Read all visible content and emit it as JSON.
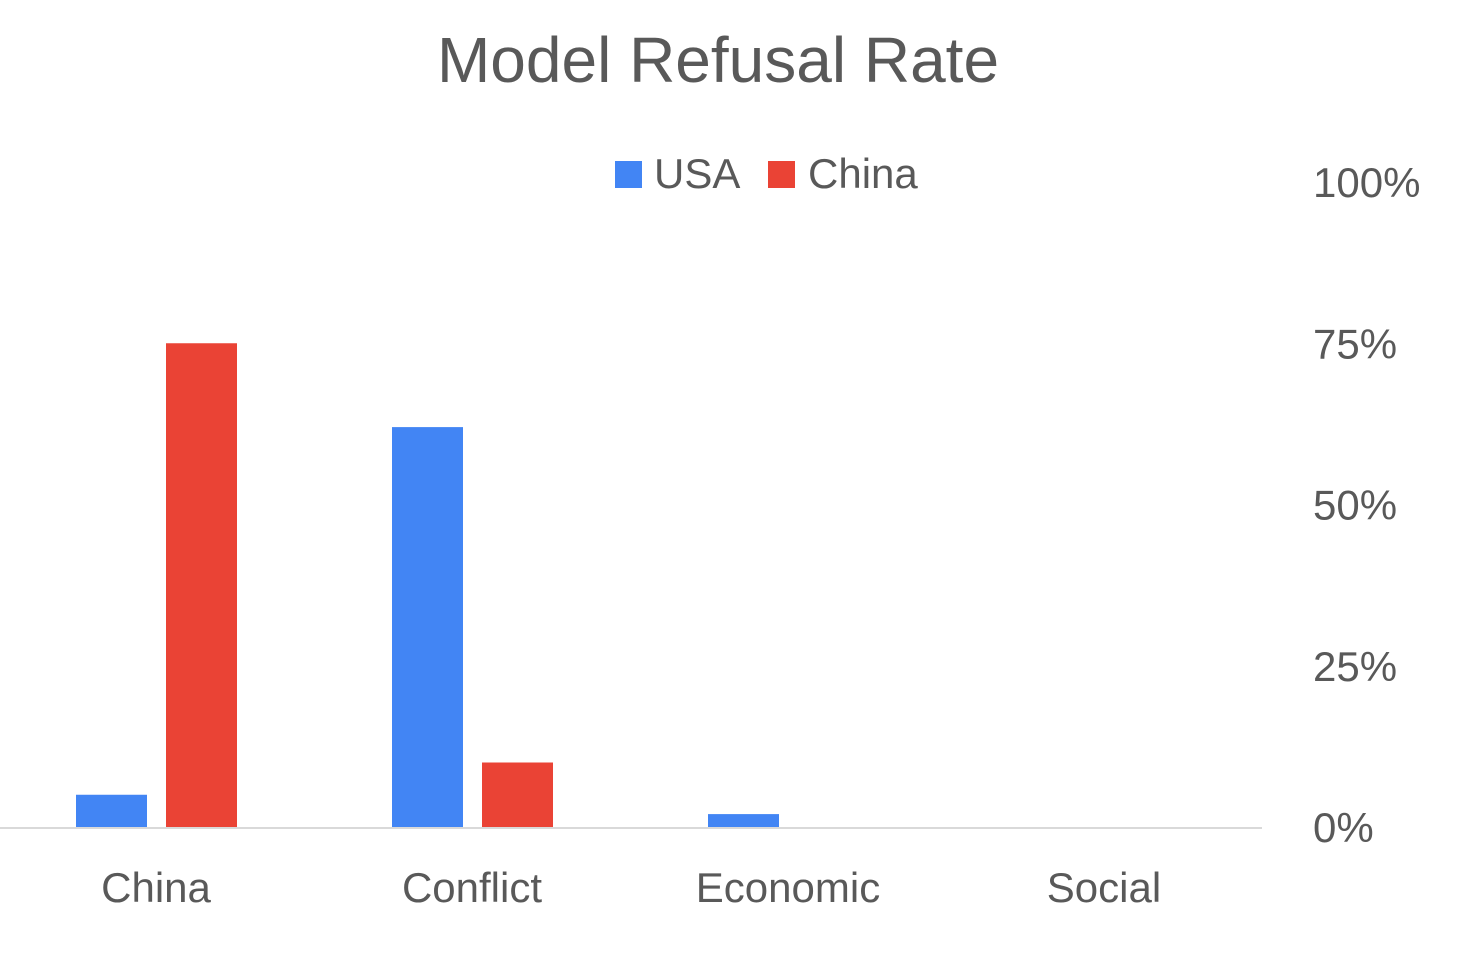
{
  "chart_data": {
    "type": "bar",
    "title": "Model Refusal Rate",
    "categories": [
      "China",
      "Conflict",
      "Economic",
      "Social"
    ],
    "series": [
      {
        "name": "USA",
        "color": "#4285F4",
        "values": [
          5,
          62,
          2,
          0
        ]
      },
      {
        "name": "China",
        "color": "#EA4335",
        "values": [
          75,
          10,
          0,
          0
        ]
      }
    ],
    "xlabel": "",
    "ylabel": "",
    "ylim": [
      0,
      100
    ],
    "yticks": [
      "0%",
      "25%",
      "50%",
      "75%",
      "100%"
    ],
    "y_axis_side": "right",
    "legend_position": "top-center",
    "grid": false,
    "axis_line_color": "#D9D9D9"
  }
}
